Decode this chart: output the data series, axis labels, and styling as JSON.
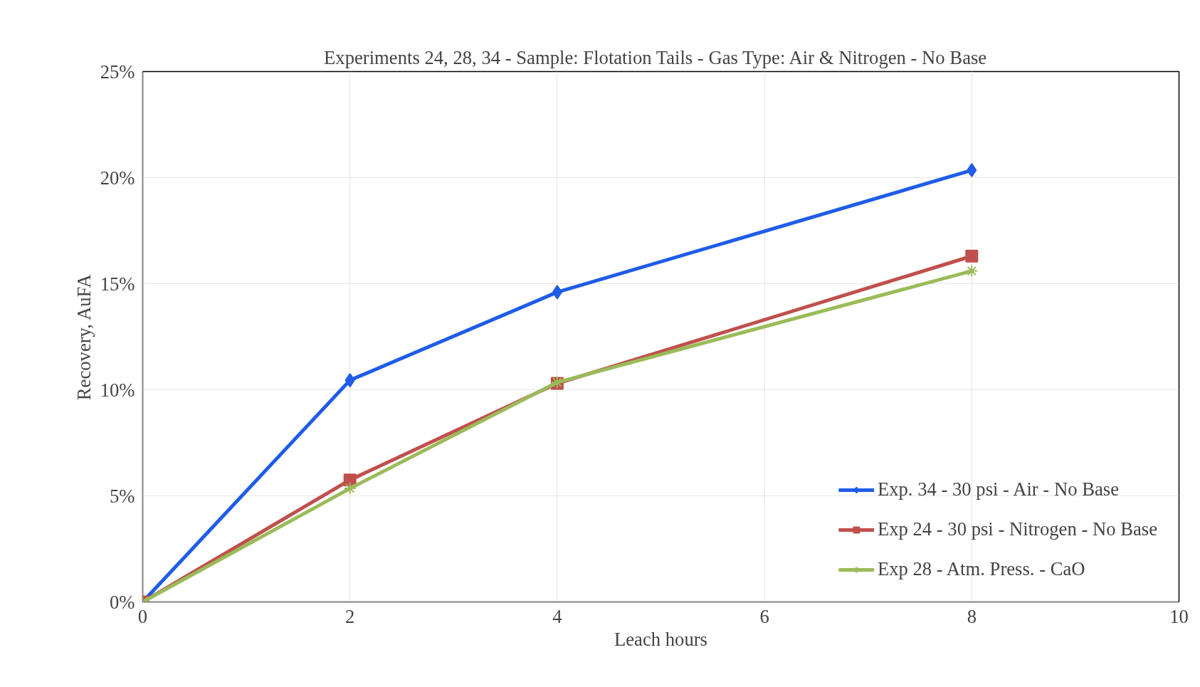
{
  "chart_data": {
    "type": "line",
    "title": "Experiments 24, 28, 34 - Sample: Flotation Tails -  Gas Type: Air & Nitrogen -  No Base",
    "xlabel": "Leach hours",
    "ylabel": "Recovery, AuFA",
    "x": [
      0,
      2,
      4,
      8
    ],
    "series": [
      {
        "name": "Exp. 34 - 30 psi - Air - No Base",
        "color": "#1f5ce8",
        "marker": "diamond",
        "values": [
          0,
          10.45,
          14.6,
          20.35
        ]
      },
      {
        "name": "Exp 24 - 30 psi - Nitrogen - No Base",
        "color": "#c0504d",
        "marker": "square",
        "values": [
          0,
          5.75,
          10.3,
          16.3
        ]
      },
      {
        "name": "Exp 28 - Atm. Press. - CaO",
        "color": "#9bbb59",
        "marker": "cross",
        "values": [
          0,
          5.35,
          10.35,
          15.6
        ]
      }
    ],
    "xlim": [
      0,
      10
    ],
    "xticks": [
      0,
      2,
      4,
      6,
      8,
      10
    ],
    "ylim": [
      0,
      25
    ],
    "yticks": [
      {
        "value": 0,
        "label": "0%"
      },
      {
        "value": 5,
        "label": "5%"
      },
      {
        "value": 10,
        "label": "10%"
      },
      {
        "value": 15,
        "label": "15%"
      },
      {
        "value": 20,
        "label": "20%"
      },
      {
        "value": 25,
        "label": "25%"
      }
    ],
    "grid": true,
    "legend": "bottom right",
    "line_style": "solid"
  }
}
